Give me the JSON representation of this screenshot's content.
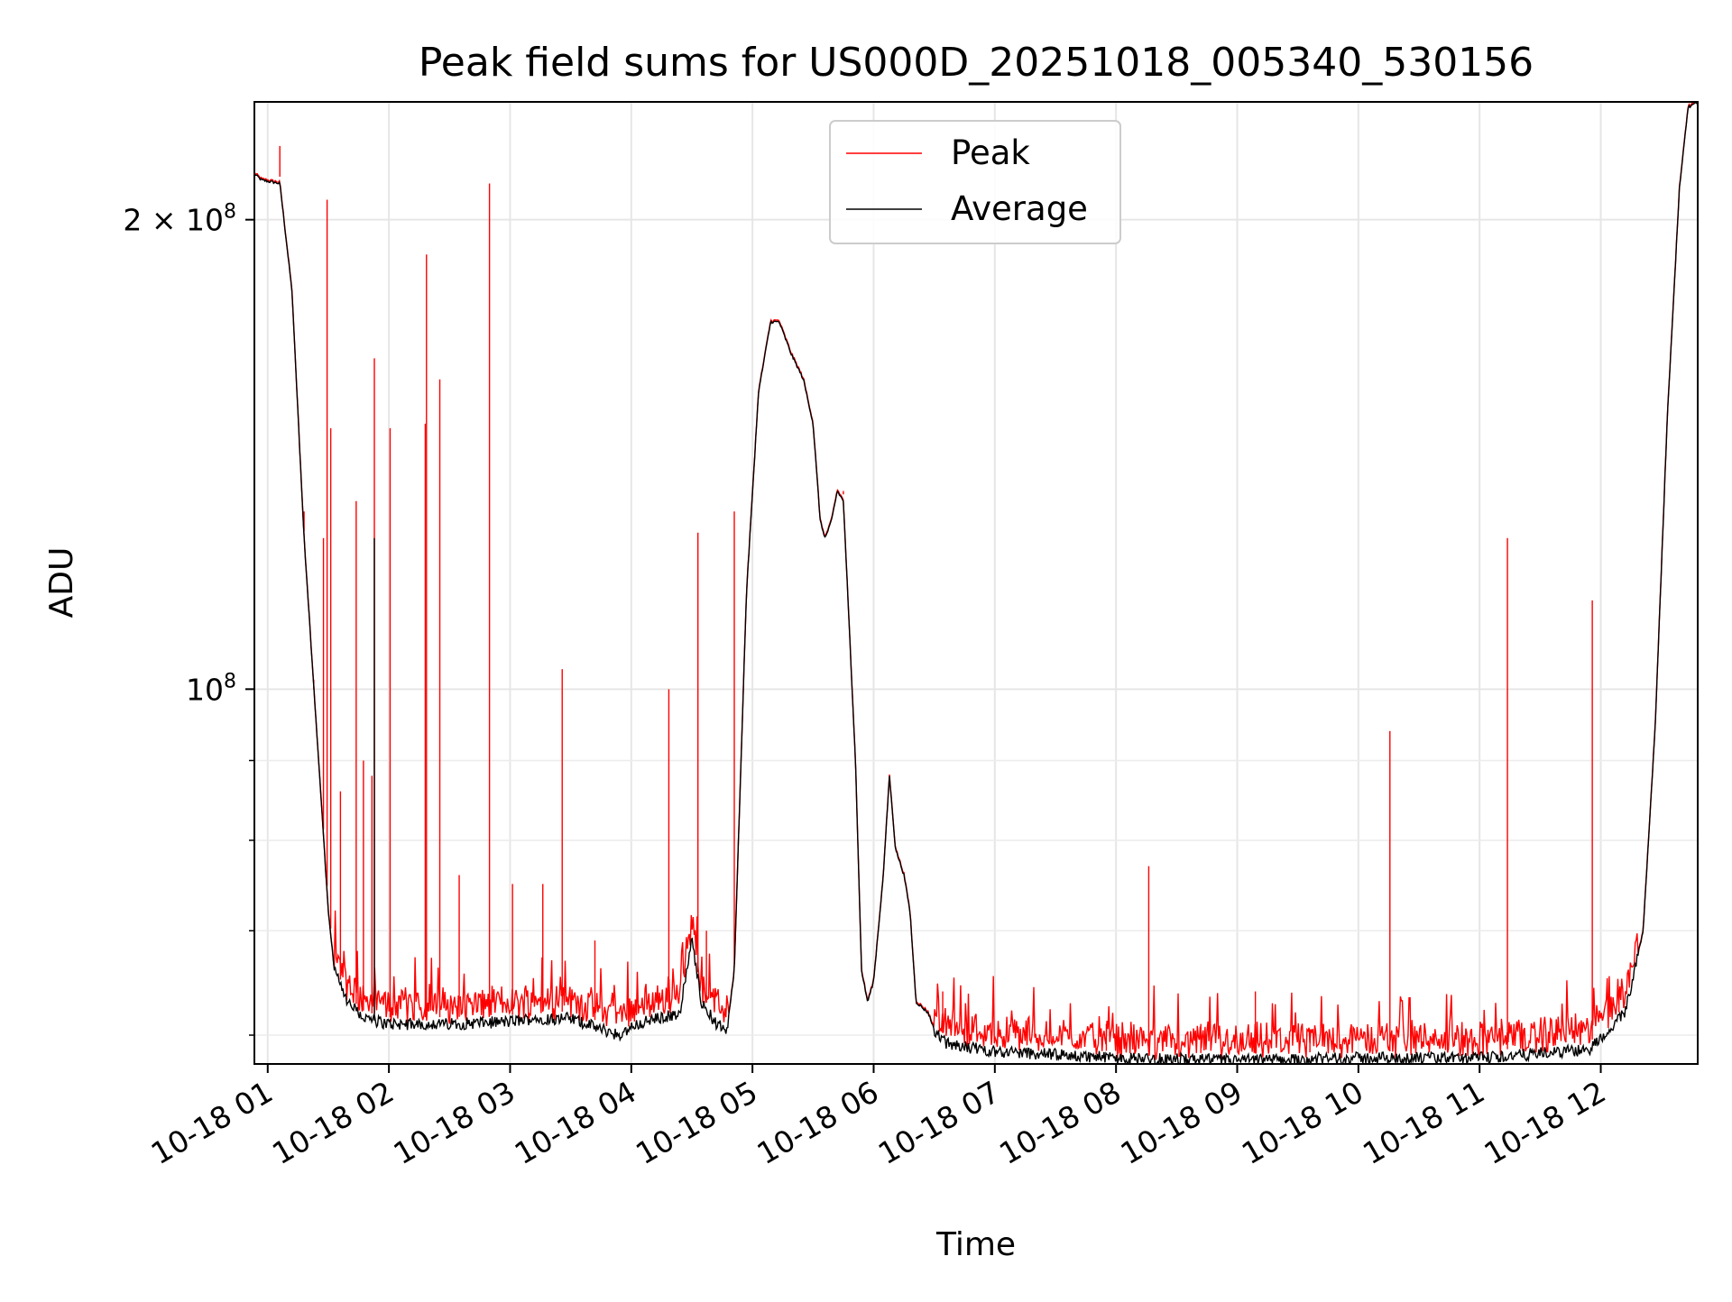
{
  "chart_data": {
    "type": "line",
    "title": "Peak field sums for US000D_20251018_005340_530156",
    "xlabel": "Time",
    "ylabel": "ADU",
    "yscale": "log",
    "xlim": [
      0.89,
      12.8
    ],
    "ylim": [
      57500000,
      238000000
    ],
    "grid": true,
    "legend_position": "top-center",
    "x_ticks": [
      {
        "value": 1,
        "label": "10-18 01"
      },
      {
        "value": 2,
        "label": "10-18 02"
      },
      {
        "value": 3,
        "label": "10-18 03"
      },
      {
        "value": 4,
        "label": "10-18 04"
      },
      {
        "value": 5,
        "label": "10-18 05"
      },
      {
        "value": 6,
        "label": "10-18 06"
      },
      {
        "value": 7,
        "label": "10-18 07"
      },
      {
        "value": 8,
        "label": "10-18 08"
      },
      {
        "value": 9,
        "label": "10-18 09"
      },
      {
        "value": 10,
        "label": "10-18 10"
      },
      {
        "value": 11,
        "label": "10-18 11"
      },
      {
        "value": 12,
        "label": "10-18 12"
      }
    ],
    "y_ticks": [
      {
        "value": 100000000,
        "base": "10",
        "exp": "8"
      },
      {
        "value": 200000000,
        "base": "2 × 10",
        "exp": "8"
      }
    ],
    "y_minor_ticks": [
      60000000,
      70000000,
      80000000,
      90000000
    ],
    "series": [
      {
        "name": "Average",
        "color": "#000000",
        "baseline": [
          [
            0.89,
            214000000
          ],
          [
            0.95,
            212000000
          ],
          [
            1.1,
            211000000
          ],
          [
            1.2,
            180000000
          ],
          [
            1.3,
            125000000
          ],
          [
            1.42,
            90000000
          ],
          [
            1.5,
            72000000
          ],
          [
            1.55,
            66000000
          ],
          [
            1.65,
            63000000
          ],
          [
            1.8,
            61500000
          ],
          [
            2.0,
            61000000
          ],
          [
            2.5,
            61000000
          ],
          [
            3.0,
            61200000
          ],
          [
            3.2,
            61500000
          ],
          [
            3.5,
            61500000
          ],
          [
            3.9,
            60000000
          ],
          [
            4.05,
            61000000
          ],
          [
            4.4,
            62000000
          ],
          [
            4.5,
            69000000
          ],
          [
            4.58,
            63000000
          ],
          [
            4.7,
            61000000
          ],
          [
            4.79,
            60500000
          ],
          [
            4.85,
            66000000
          ],
          [
            4.95,
            115000000
          ],
          [
            5.05,
            155000000
          ],
          [
            5.15,
            172000000
          ],
          [
            5.22,
            172000000
          ],
          [
            5.32,
            164000000
          ],
          [
            5.42,
            158000000
          ],
          [
            5.5,
            148000000
          ],
          [
            5.56,
            128000000
          ],
          [
            5.6,
            125000000
          ],
          [
            5.65,
            128000000
          ],
          [
            5.7,
            134000000
          ],
          [
            5.75,
            132000000
          ],
          [
            5.85,
            90000000
          ],
          [
            5.9,
            66000000
          ],
          [
            5.95,
            63000000
          ],
          [
            6.0,
            65000000
          ],
          [
            6.08,
            76000000
          ],
          [
            6.13,
            88000000
          ],
          [
            6.18,
            79000000
          ],
          [
            6.25,
            76000000
          ],
          [
            6.3,
            72000000
          ],
          [
            6.35,
            63000000
          ],
          [
            6.45,
            62000000
          ],
          [
            6.5,
            60500000
          ],
          [
            6.6,
            59200000
          ],
          [
            7.0,
            58600000
          ],
          [
            8.0,
            58000000
          ],
          [
            9.0,
            57800000
          ],
          [
            10.0,
            58000000
          ],
          [
            11.0,
            58000000
          ],
          [
            11.5,
            58400000
          ],
          [
            11.9,
            58700000
          ],
          [
            12.2,
            62000000
          ],
          [
            12.35,
            70000000
          ],
          [
            12.45,
            95000000
          ],
          [
            12.55,
            150000000
          ],
          [
            12.65,
            210000000
          ],
          [
            12.72,
            236000000
          ],
          [
            12.8,
            238000000
          ]
        ],
        "spikes": [
          {
            "x": 1.88,
            "y": 125000000
          }
        ]
      },
      {
        "name": "Peak",
        "color": "#ff0000",
        "spikes": [
          {
            "x": 1.1,
            "y": 223000000
          },
          {
            "x": 1.3,
            "y": 130000000
          },
          {
            "x": 1.38,
            "y": 100000000
          },
          {
            "x": 1.46,
            "y": 125000000
          },
          {
            "x": 1.49,
            "y": 206000000
          },
          {
            "x": 1.52,
            "y": 147000000
          },
          {
            "x": 1.6,
            "y": 86000000
          },
          {
            "x": 1.73,
            "y": 132000000
          },
          {
            "x": 1.79,
            "y": 90000000
          },
          {
            "x": 1.86,
            "y": 88000000
          },
          {
            "x": 1.88,
            "y": 163000000
          },
          {
            "x": 2.01,
            "y": 147000000
          },
          {
            "x": 2.3,
            "y": 148000000
          },
          {
            "x": 2.31,
            "y": 190000000
          },
          {
            "x": 2.42,
            "y": 158000000
          },
          {
            "x": 2.58,
            "y": 76000000
          },
          {
            "x": 2.83,
            "y": 211000000
          },
          {
            "x": 3.02,
            "y": 75000000
          },
          {
            "x": 3.27,
            "y": 75000000
          },
          {
            "x": 3.43,
            "y": 103000000
          },
          {
            "x": 3.7,
            "y": 69000000
          },
          {
            "x": 4.31,
            "y": 100000000
          },
          {
            "x": 4.55,
            "y": 126000000
          },
          {
            "x": 4.62,
            "y": 70000000
          },
          {
            "x": 4.85,
            "y": 130000000
          },
          {
            "x": 5.75,
            "y": 134000000
          },
          {
            "x": 6.57,
            "y": 64000000
          },
          {
            "x": 7.92,
            "y": 61000000
          },
          {
            "x": 8.27,
            "y": 77000000
          },
          {
            "x": 8.7,
            "y": 61000000
          },
          {
            "x": 9.15,
            "y": 64000000
          },
          {
            "x": 9.6,
            "y": 60500000
          },
          {
            "x": 10.26,
            "y": 94000000
          },
          {
            "x": 11.23,
            "y": 125000000
          },
          {
            "x": 11.93,
            "y": 114000000
          },
          {
            "x": 12.15,
            "y": 64000000
          }
        ]
      }
    ]
  }
}
